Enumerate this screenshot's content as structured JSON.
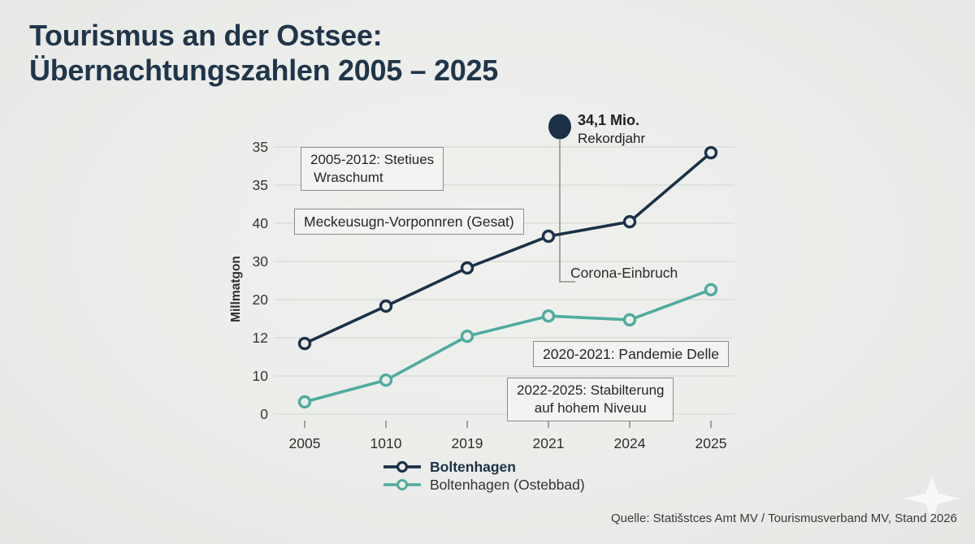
{
  "header": {
    "title_line1": "Tourismus an der Ostsee:",
    "title_line2": "Übernachtungszahlen 2005 – 2025"
  },
  "chart_data": {
    "type": "line",
    "title": "Tourismus an der Ostsee: Übernachtungszahlen 2005 – 2025",
    "ylabel": "Millmatgon",
    "xlabel": "",
    "x_tick_labels": [
      "2005",
      "1010",
      "2019",
      "2021",
      "2024",
      "2025"
    ],
    "y_tick_labels_bottom_to_top": [
      "0",
      "10",
      "12",
      "20",
      "30",
      "40",
      "35",
      "35"
    ],
    "y_unit": "gridline-index (bottom gridline = 0, each printed tick = +1)",
    "grid": true,
    "legend_position": "bottom",
    "series": [
      {
        "name": "Boltenhagen",
        "color": "#1c3147",
        "values_grid_units": [
          1.85,
          2.83,
          3.83,
          4.66,
          5.04,
          6.85
        ]
      },
      {
        "name": "Boltenhagen (Ostebbad)",
        "color": "#4fac9e",
        "values_grid_units": [
          0.32,
          0.89,
          2.04,
          2.57,
          2.47,
          3.26
        ]
      }
    ],
    "annotations": {
      "growth": {
        "line1": "2005-2012: Stetiues",
        "line2": "Wraschumt"
      },
      "region": {
        "text": "Meckeusugn-Vorponnren (Gesat)"
      },
      "record": {
        "value": "34,1 Mio.",
        "label": "Rekordjahr"
      },
      "corona": {
        "text": "Corona-Einbruch"
      },
      "pandemic": {
        "text": "2020-2021: Pandemie Delle"
      },
      "stabilization": {
        "line1": "2022-2025: Stabilterung",
        "line2": "auf hohem Niveuu"
      }
    }
  },
  "footer": {
    "source": "Quelle: Statišstces Amt MV / Tourismusverband MV, Stand 2026"
  },
  "colors": {
    "background": "#ecedea",
    "title": "#21354a",
    "navy": "#1c3147",
    "teal": "#4fac9e",
    "gridline": "#d7d9d5",
    "axis_text": "#353533",
    "annotation_bg": "#f3f4f1",
    "annotation_border": "#8c8c8a",
    "connector": "#8f8f8c"
  }
}
